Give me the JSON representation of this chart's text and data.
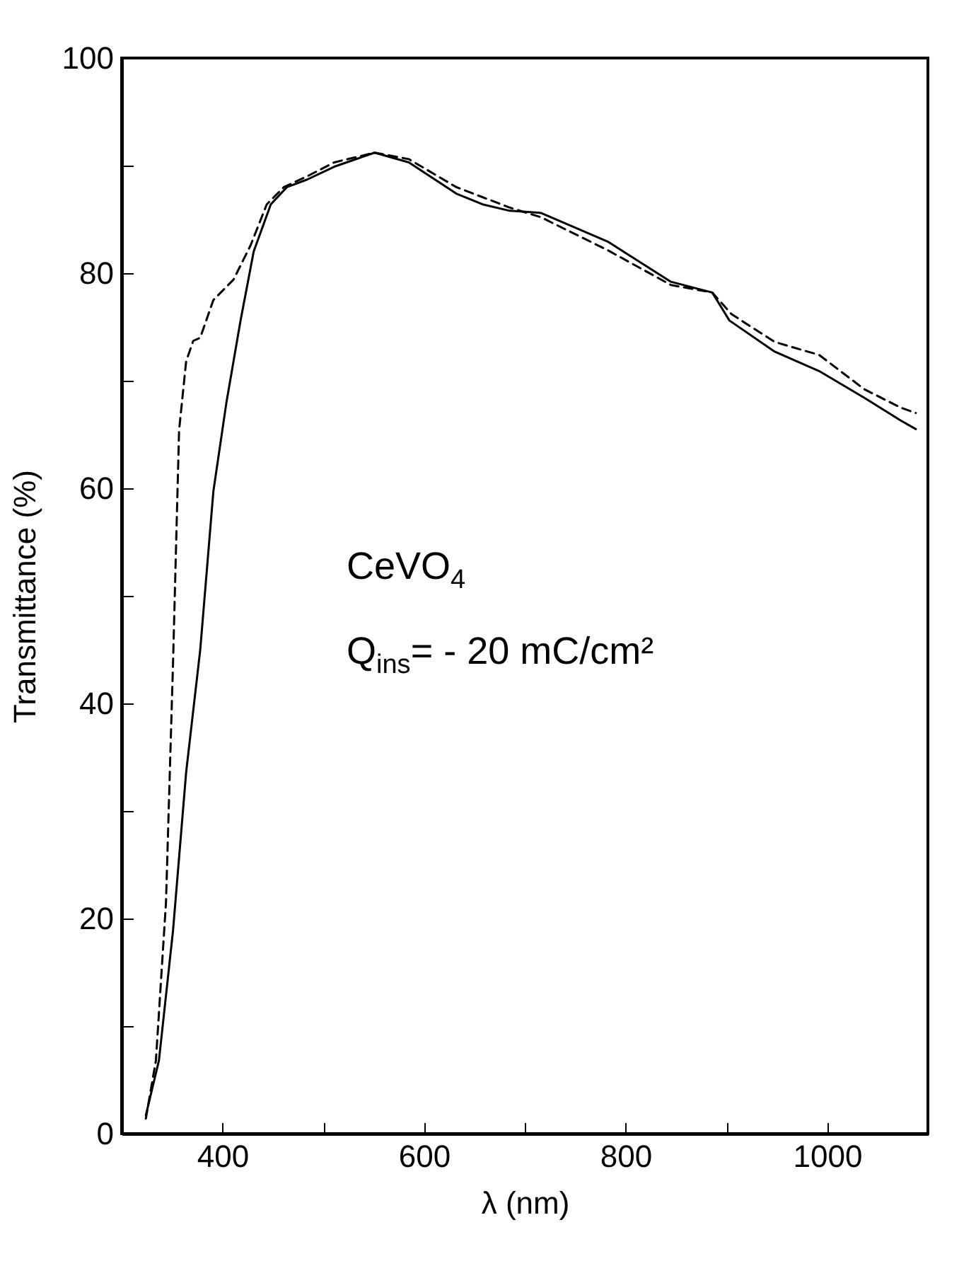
{
  "chart_data": {
    "type": "line",
    "xlabel": "λ (nm)",
    "ylabel": "Transmittance (%)",
    "xlim": [
      300,
      1100
    ],
    "ylim": [
      0,
      100
    ],
    "xticks": [
      400,
      {
        "value": 500,
        "label": null
      },
      600,
      {
        "value": 700,
        "label": null
      },
      800,
      {
        "value": 900,
        "label": null
      },
      1000
    ],
    "yticks": [
      0,
      {
        "value": 10,
        "label": null
      },
      20,
      {
        "value": 30,
        "label": null
      },
      40,
      {
        "value": 50,
        "label": null
      },
      60,
      {
        "value": 70,
        "label": null
      },
      80,
      {
        "value": 90,
        "label": null
      },
      100
    ],
    "grid": false,
    "marker": "none",
    "annotations": [
      "CeVO$_{4}$",
      "Q$_{ins}$= - 20 mC/cm²"
    ],
    "series": [
      {
        "color": "#000000",
        "line_style": "solid",
        "x": [
          324,
          337,
          351,
          364,
          378,
          391,
          404,
          418,
          431,
          448,
          464,
          484,
          511,
          551,
          585,
          632,
          658,
          685,
          716,
          783,
          845,
          886,
          903,
          948,
          992,
          1037,
          1073,
          1088
        ],
        "values": [
          1.7,
          6.8,
          18.9,
          33.6,
          45,
          59.7,
          68,
          75.6,
          82,
          86.4,
          88,
          88.7,
          89.9,
          91.2,
          90.3,
          87.4,
          86.4,
          85.8,
          85.6,
          82.9,
          79.2,
          78.2,
          75.6,
          72.7,
          70.9,
          68.4,
          66.3,
          65.5
        ]
      },
      {
        "color": "#000000",
        "line_style": "dashed",
        "x": [
          324,
          334,
          344,
          351,
          357,
          364,
          371,
          378,
          391,
          411,
          428,
          444,
          461,
          484,
          511,
          551,
          585,
          632,
          685,
          716,
          783,
          845,
          886,
          905,
          948,
          992,
          1037,
          1073,
          1088
        ],
        "values": [
          1.4,
          6.8,
          21.5,
          43.8,
          65.4,
          71.8,
          73.7,
          74,
          77.5,
          79.4,
          82.6,
          86.4,
          88,
          89,
          90.3,
          91.2,
          90.6,
          88,
          86.1,
          85.2,
          82.1,
          78.9,
          78.2,
          76.2,
          73.6,
          72.4,
          69.2,
          67.5,
          67
        ]
      }
    ]
  }
}
